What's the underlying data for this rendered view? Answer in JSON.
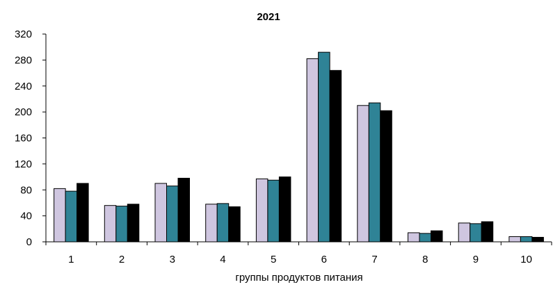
{
  "chart_data": {
    "type": "bar",
    "title": "2021",
    "xlabel": "группы  продуктов питания",
    "ylabel": "",
    "categories": [
      "1",
      "2",
      "3",
      "4",
      "5",
      "6",
      "7",
      "8",
      "9",
      "10"
    ],
    "ylim": [
      0,
      320
    ],
    "yticks": [
      0,
      40,
      80,
      120,
      160,
      200,
      240,
      280,
      320
    ],
    "grid": false,
    "legend": "none",
    "series": [
      {
        "color": "#cfc6e0",
        "values": [
          82,
          56,
          90,
          58,
          97,
          282,
          210,
          14,
          29,
          8
        ]
      },
      {
        "color": "#2f8396",
        "values": [
          78,
          55,
          86,
          59,
          95,
          292,
          214,
          13,
          28,
          8
        ]
      },
      {
        "color": "#000000",
        "values": [
          90,
          58,
          98,
          54,
          100,
          264,
          202,
          17,
          31,
          7
        ]
      }
    ]
  }
}
